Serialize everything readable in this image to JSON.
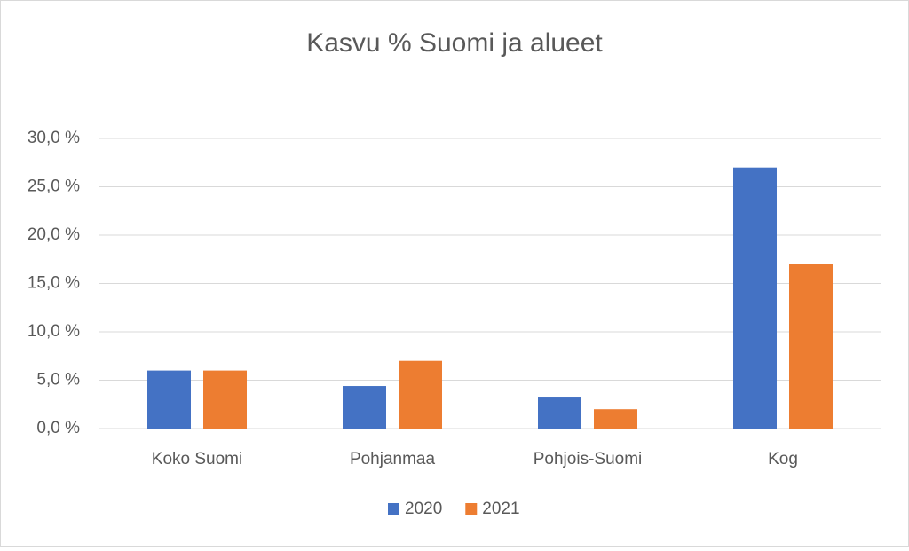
{
  "chart_data": {
    "type": "bar",
    "title": "Kasvu % Suomi ja alueet",
    "categories": [
      "Koko Suomi",
      "Pohjanmaa",
      "Pohjois-Suomi",
      "Kog"
    ],
    "series": [
      {
        "name": "2020",
        "color": "#4472c4",
        "values": [
          6.0,
          4.4,
          3.3,
          27.0
        ]
      },
      {
        "name": "2021",
        "color": "#ed7d31",
        "values": [
          6.0,
          7.0,
          2.0,
          17.0
        ]
      }
    ],
    "ylim": [
      0,
      30
    ],
    "yticks": [
      {
        "value": 0,
        "label": "0,0 %"
      },
      {
        "value": 5,
        "label": "5,0 %"
      },
      {
        "value": 10,
        "label": "10,0 %"
      },
      {
        "value": 15,
        "label": "15,0 %"
      },
      {
        "value": 20,
        "label": "20,0 %"
      },
      {
        "value": 25,
        "label": "25,0 %"
      },
      {
        "value": 30,
        "label": "30,0 %"
      }
    ],
    "grid": true,
    "legend": "bottom"
  }
}
